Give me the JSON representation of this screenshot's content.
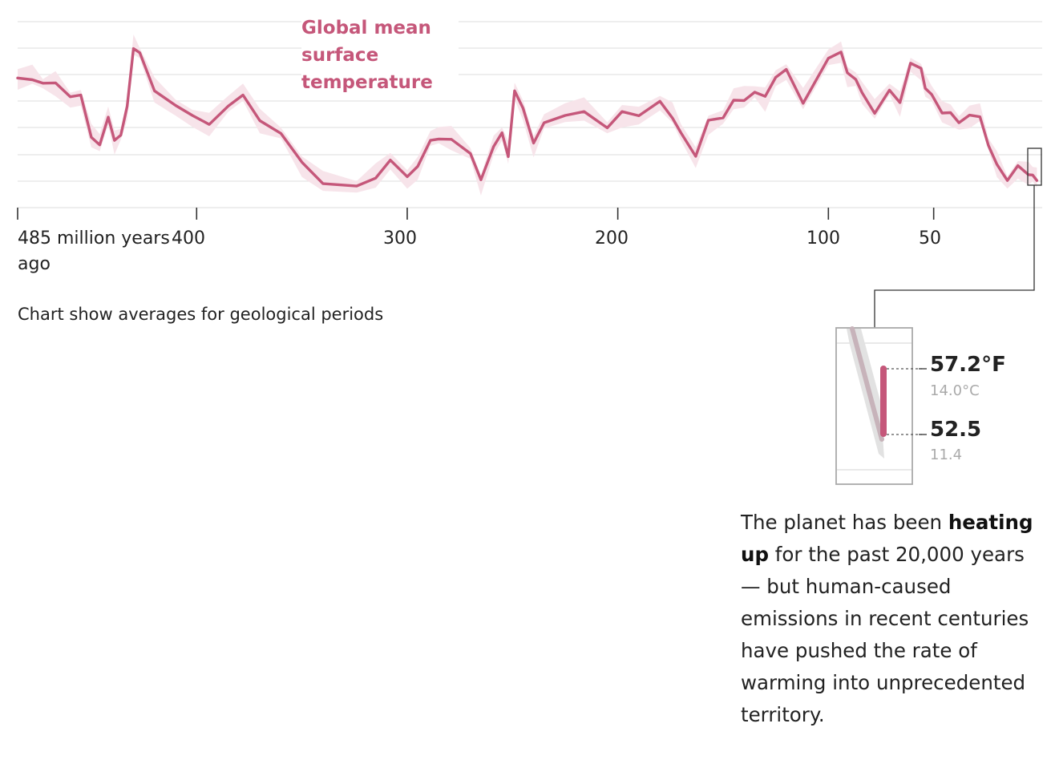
{
  "chart_data": {
    "type": "line",
    "title": "Global mean surface temperature",
    "note": "Chart show averages for geological periods",
    "x_ticks": [
      {
        "value": 485,
        "label": "485 million years ago"
      },
      {
        "value": 400,
        "label": "400"
      },
      {
        "value": 300,
        "label": "300"
      },
      {
        "value": 200,
        "label": "200"
      },
      {
        "value": 100,
        "label": "100"
      },
      {
        "value": 50,
        "label": "50"
      }
    ],
    "x_direction": "reversed (million years ago, past on left)",
    "grid": true,
    "series": [
      {
        "name": "Global mean surface temperature",
        "x": [
          485,
          478,
          473,
          467,
          460,
          455,
          450,
          446,
          442,
          439,
          436,
          433,
          430,
          427,
          420,
          410,
          402,
          394,
          385,
          378,
          370,
          360,
          350,
          340,
          324,
          315,
          308,
          300,
          295,
          289,
          285,
          279,
          270,
          265,
          259,
          255,
          252,
          249,
          245,
          240,
          235,
          225,
          216,
          205,
          198,
          190,
          180,
          174,
          170,
          163,
          157,
          150,
          145,
          140,
          135,
          130,
          125,
          120,
          112,
          100,
          94,
          91,
          87,
          84,
          78,
          71,
          66,
          61,
          56,
          54,
          51,
          46,
          42,
          38,
          33,
          28,
          24,
          20,
          15,
          10,
          5,
          3,
          1
        ],
        "y": [
          82.1,
          81.6,
          80.6,
          80.7,
          76.7,
          77.2,
          65.0,
          62.8,
          70.8,
          64.1,
          65.6,
          73.9,
          90.6,
          89.4,
          78.4,
          74.2,
          71.3,
          68.7,
          74.0,
          77.2,
          69.8,
          66.1,
          57.8,
          51.6,
          50.9,
          53.2,
          58.4,
          53.6,
          56.6,
          64.1,
          64.5,
          64.4,
          60.3,
          52.7,
          62.3,
          66.3,
          59.4,
          78.4,
          73.4,
          63.3,
          69.2,
          71.3,
          72.4,
          67.7,
          72.4,
          71.2,
          75.4,
          70.5,
          66.3,
          59.5,
          69.9,
          70.6,
          75.7,
          75.6,
          78.0,
          76.8,
          82.3,
          84.6,
          74.8,
          87.8,
          89.6,
          83.6,
          81.7,
          77.9,
          71.9,
          78.6,
          75.0,
          86.4,
          84.9,
          79.1,
          77.4,
          72.0,
          72.1,
          69.2,
          71.4,
          70.9,
          62.6,
          57.2,
          52.5,
          56.8,
          54.2,
          54.1,
          52.5
        ]
      }
    ],
    "inset": {
      "upper": {
        "value_f": "57.2°F",
        "value_c": "14.0°C"
      },
      "lower": {
        "value_f": "52.5",
        "value_c": "11.4"
      }
    },
    "annotation": {
      "before_bold": "The planet has been ",
      "bold": "heating up",
      "after_bold": " for the past 20,000 years — but human-caused emissions in recent centuries have pushed the rate of warming into unprecedented territory."
    },
    "colors": {
      "line": "#c5577a",
      "band": "#f7e4ea",
      "grid": "#e3e3e3",
      "axis": "#333333",
      "muted": "#aaaaaa"
    }
  }
}
